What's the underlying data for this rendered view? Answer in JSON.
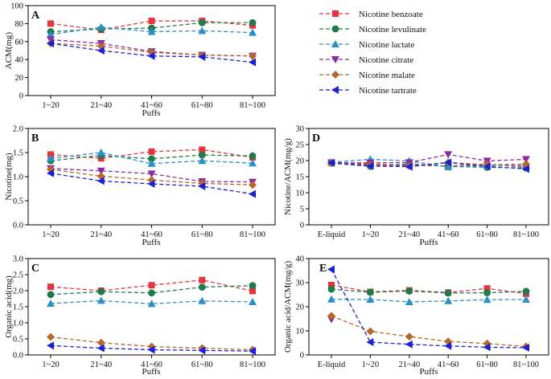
{
  "legend": [
    {
      "name": "Nicotine benzoate",
      "color": "#e8333f",
      "marker": "square"
    },
    {
      "name": "Nicotine levulinate",
      "color": "#1f7a4c",
      "marker": "circle"
    },
    {
      "name": "Nicotine lactate",
      "color": "#2a8fc7",
      "marker": "triangle-up"
    },
    {
      "name": "Nicotine citrate",
      "color": "#8a2ba3",
      "marker": "triangle-down"
    },
    {
      "name": "Nicotine malate",
      "color": "#b8662a",
      "marker": "diamond"
    },
    {
      "name": "Nicotine tartrate",
      "color": "#1a20d6",
      "marker": "triangle-left"
    }
  ],
  "chart_data": [
    {
      "panel": "A",
      "type": "line",
      "categories": [
        "1~20",
        "21~40",
        "41~60",
        "61~80",
        "81~100"
      ],
      "xlabel": "Puffs",
      "ylabel": "ACM(mg)",
      "ylim": [
        0,
        100
      ],
      "yticks": [
        "0",
        "20",
        "40",
        "60",
        "80",
        "100"
      ],
      "series": [
        {
          "name": "Nicotine benzoate",
          "values": [
            80,
            73,
            83,
            83,
            78
          ]
        },
        {
          "name": "Nicotine levulinate",
          "values": [
            71,
            74,
            75,
            81,
            81
          ]
        },
        {
          "name": "Nicotine lactate",
          "values": [
            68,
            76,
            71,
            72,
            70
          ]
        },
        {
          "name": "Nicotine citrate",
          "values": [
            62,
            58,
            49,
            45,
            44
          ]
        },
        {
          "name": "Nicotine malate",
          "values": [
            58,
            55,
            48,
            45,
            44
          ]
        },
        {
          "name": "Nicotine tartrate",
          "values": [
            58,
            50,
            44,
            43,
            37
          ]
        }
      ]
    },
    {
      "panel": "B",
      "type": "line",
      "categories": [
        "1~20",
        "21~40",
        "41~60",
        "61~80",
        "81~100"
      ],
      "xlabel": "Puffs",
      "ylabel": "Nicotine(mg)",
      "ylim": [
        0,
        2
      ],
      "yticks": [
        "0.0",
        "0.5",
        "1.0",
        "1.5",
        "2.0"
      ],
      "series": [
        {
          "name": "Nicotine benzoate",
          "values": [
            1.46,
            1.38,
            1.52,
            1.56,
            1.4
          ]
        },
        {
          "name": "Nicotine levulinate",
          "values": [
            1.33,
            1.44,
            1.37,
            1.45,
            1.43
          ]
        },
        {
          "name": "Nicotine lactate",
          "values": [
            1.38,
            1.5,
            1.27,
            1.33,
            1.28
          ]
        },
        {
          "name": "Nicotine citrate",
          "values": [
            1.17,
            1.12,
            1.06,
            0.9,
            0.89
          ]
        },
        {
          "name": "Nicotine malate",
          "values": [
            1.15,
            1.01,
            0.93,
            0.86,
            0.83
          ]
        },
        {
          "name": "Nicotine tartrate",
          "values": [
            1.07,
            0.91,
            0.85,
            0.8,
            0.64
          ]
        }
      ]
    },
    {
      "panel": "C",
      "type": "line",
      "categories": [
        "1~20",
        "21~40",
        "41~60",
        "61~80",
        "81~100"
      ],
      "xlabel": "Puffs",
      "ylabel": "Organic acid(mg)",
      "ylim": [
        0,
        3
      ],
      "yticks": [
        "0.0",
        "0.5",
        "1.0",
        "1.5",
        "2.0",
        "2.5",
        "3.0"
      ],
      "series": [
        {
          "name": "Nicotine benzoate",
          "values": [
            2.12,
            2.0,
            2.17,
            2.33,
            1.99
          ]
        },
        {
          "name": "Nicotine levulinate",
          "values": [
            1.88,
            1.97,
            1.93,
            2.11,
            2.16
          ]
        },
        {
          "name": "Nicotine lactate",
          "values": [
            1.6,
            1.69,
            1.59,
            1.68,
            1.65
          ]
        },
        {
          "name": "Nicotine malate",
          "values": [
            0.56,
            0.38,
            0.26,
            0.21,
            0.16
          ]
        },
        {
          "name": "Nicotine tartrate",
          "values": [
            0.29,
            0.21,
            0.16,
            0.14,
            0.12
          ]
        }
      ]
    },
    {
      "panel": "D",
      "type": "line",
      "categories": [
        "E-liquid",
        "1~20",
        "21~40",
        "41~60",
        "61~80",
        "81~100"
      ],
      "xlabel": "Puffs",
      "ylabel": "Nicotine/ACM(mg/g)",
      "ylim": [
        0,
        30
      ],
      "yticks": [
        "0",
        "5",
        "10",
        "15",
        "20",
        "25",
        "30"
      ],
      "series": [
        {
          "name": "Nicotine benzoate",
          "values": [
            19.4,
            18.9,
            18.6,
            18.3,
            18.8,
            18.0
          ]
        },
        {
          "name": "Nicotine levulinate",
          "values": [
            19.2,
            18.2,
            19.0,
            18.2,
            17.9,
            17.7
          ]
        },
        {
          "name": "Nicotine lactate",
          "values": [
            19.5,
            20.4,
            19.9,
            18.0,
            18.5,
            18.5
          ]
        },
        {
          "name": "Nicotine citrate",
          "values": [
            19.3,
            19.3,
            19.4,
            21.9,
            19.9,
            20.4
          ]
        },
        {
          "name": "Nicotine malate",
          "values": [
            19.2,
            18.6,
            18.3,
            19.4,
            18.7,
            18.9
          ]
        },
        {
          "name": "Nicotine tartrate",
          "values": [
            19.3,
            18.3,
            18.1,
            19.4,
            18.2,
            17.4
          ]
        }
      ]
    },
    {
      "panel": "E",
      "type": "line",
      "categories": [
        "E-liquid",
        "1~20",
        "21~40",
        "41~60",
        "61~80",
        "81~100"
      ],
      "xlabel": "Puffs",
      "ylabel": "Organic acid/ACM(mg/g)",
      "ylim": [
        0,
        40
      ],
      "yticks": [
        "0",
        "10",
        "20",
        "30",
        "40"
      ],
      "series": [
        {
          "name": "Nicotine benzoate",
          "values": [
            29.0,
            26.2,
            26.8,
            25.9,
            27.6,
            25.4
          ]
        },
        {
          "name": "Nicotine levulinate",
          "values": [
            27.3,
            26.0,
            26.5,
            25.7,
            25.8,
            26.4
          ]
        },
        {
          "name": "Nicotine lactate",
          "values": [
            23.1,
            23.0,
            22.0,
            22.4,
            22.9,
            23.0
          ]
        },
        {
          "name": "Nicotine citrate",
          "values": [
            14.8,
            null,
            null,
            null,
            null,
            null
          ]
        },
        {
          "name": "Nicotine malate",
          "values": [
            16.2,
            9.8,
            7.6,
            5.6,
            4.7,
            3.5
          ]
        },
        {
          "name": "Nicotine tartrate",
          "values": [
            35.5,
            5.3,
            4.4,
            3.7,
            3.2,
            3.0
          ]
        }
      ]
    }
  ]
}
